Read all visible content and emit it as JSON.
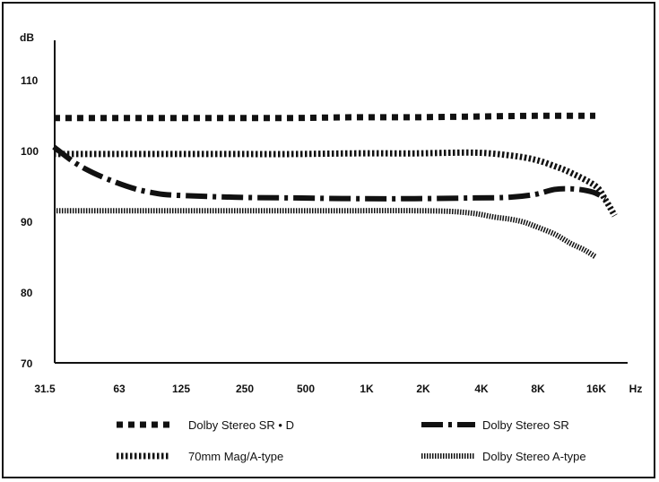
{
  "chart_data": {
    "type": "line",
    "title": "",
    "ylabel": "dB",
    "xlabel": "Hz",
    "ylim": [
      70,
      115
    ],
    "y_ticks": [
      70,
      80,
      90,
      100,
      110
    ],
    "x_categories": [
      "31.5",
      "63",
      "125",
      "250",
      "500",
      "1K",
      "2K",
      "4K",
      "8K",
      "16K"
    ],
    "grid": false,
    "legend_position": "bottom",
    "series": [
      {
        "name": "Dolby Stereo SR • D",
        "style": "dashed-square",
        "color": "#111111",
        "points": [
          [
            31.5,
            104.6
          ],
          [
            63,
            104.6
          ],
          [
            125,
            104.6
          ],
          [
            250,
            104.6
          ],
          [
            500,
            104.6
          ],
          [
            1000,
            104.7
          ],
          [
            2000,
            104.7
          ],
          [
            4000,
            104.8
          ],
          [
            8000,
            104.9
          ],
          [
            16000,
            104.9
          ]
        ]
      },
      {
        "name": "Dolby Stereo SR",
        "style": "dash-dot",
        "color": "#111111",
        "points": [
          [
            31.5,
            100.5
          ],
          [
            40,
            98.3
          ],
          [
            50,
            96.8
          ],
          [
            63,
            95.6
          ],
          [
            80,
            94.6
          ],
          [
            100,
            94.0
          ],
          [
            125,
            93.7
          ],
          [
            250,
            93.4
          ],
          [
            500,
            93.3
          ],
          [
            1000,
            93.2
          ],
          [
            2000,
            93.2
          ],
          [
            4000,
            93.3
          ],
          [
            6000,
            93.4
          ],
          [
            8000,
            93.8
          ],
          [
            10000,
            94.5
          ],
          [
            12000,
            94.6
          ],
          [
            14000,
            94.4
          ],
          [
            16000,
            94.0
          ],
          [
            18000,
            93.2
          ]
        ]
      },
      {
        "name": "70mm Mag/A-type",
        "style": "dotted",
        "color": "#111111",
        "points": [
          [
            31.5,
            99.5
          ],
          [
            63,
            99.5
          ],
          [
            125,
            99.5
          ],
          [
            250,
            99.5
          ],
          [
            500,
            99.5
          ],
          [
            1000,
            99.6
          ],
          [
            2000,
            99.6
          ],
          [
            4000,
            99.7
          ],
          [
            6000,
            99.3
          ],
          [
            8000,
            98.7
          ],
          [
            10000,
            97.8
          ],
          [
            12000,
            96.9
          ],
          [
            16000,
            95.0
          ],
          [
            18000,
            93.0
          ],
          [
            20000,
            90.8
          ]
        ]
      },
      {
        "name": "Dolby Stereo A-type",
        "style": "fine-dotted",
        "color": "#111111",
        "points": [
          [
            31.5,
            91.5
          ],
          [
            63,
            91.5
          ],
          [
            125,
            91.5
          ],
          [
            250,
            91.5
          ],
          [
            500,
            91.5
          ],
          [
            1000,
            91.5
          ],
          [
            2000,
            91.5
          ],
          [
            3000,
            91.4
          ],
          [
            4000,
            91.1
          ],
          [
            5000,
            90.6
          ],
          [
            6000,
            90.3
          ],
          [
            7000,
            89.9
          ],
          [
            8000,
            89.3
          ],
          [
            10000,
            88.2
          ],
          [
            12000,
            86.9
          ],
          [
            14000,
            86.0
          ],
          [
            16000,
            85.0
          ]
        ]
      }
    ]
  }
}
